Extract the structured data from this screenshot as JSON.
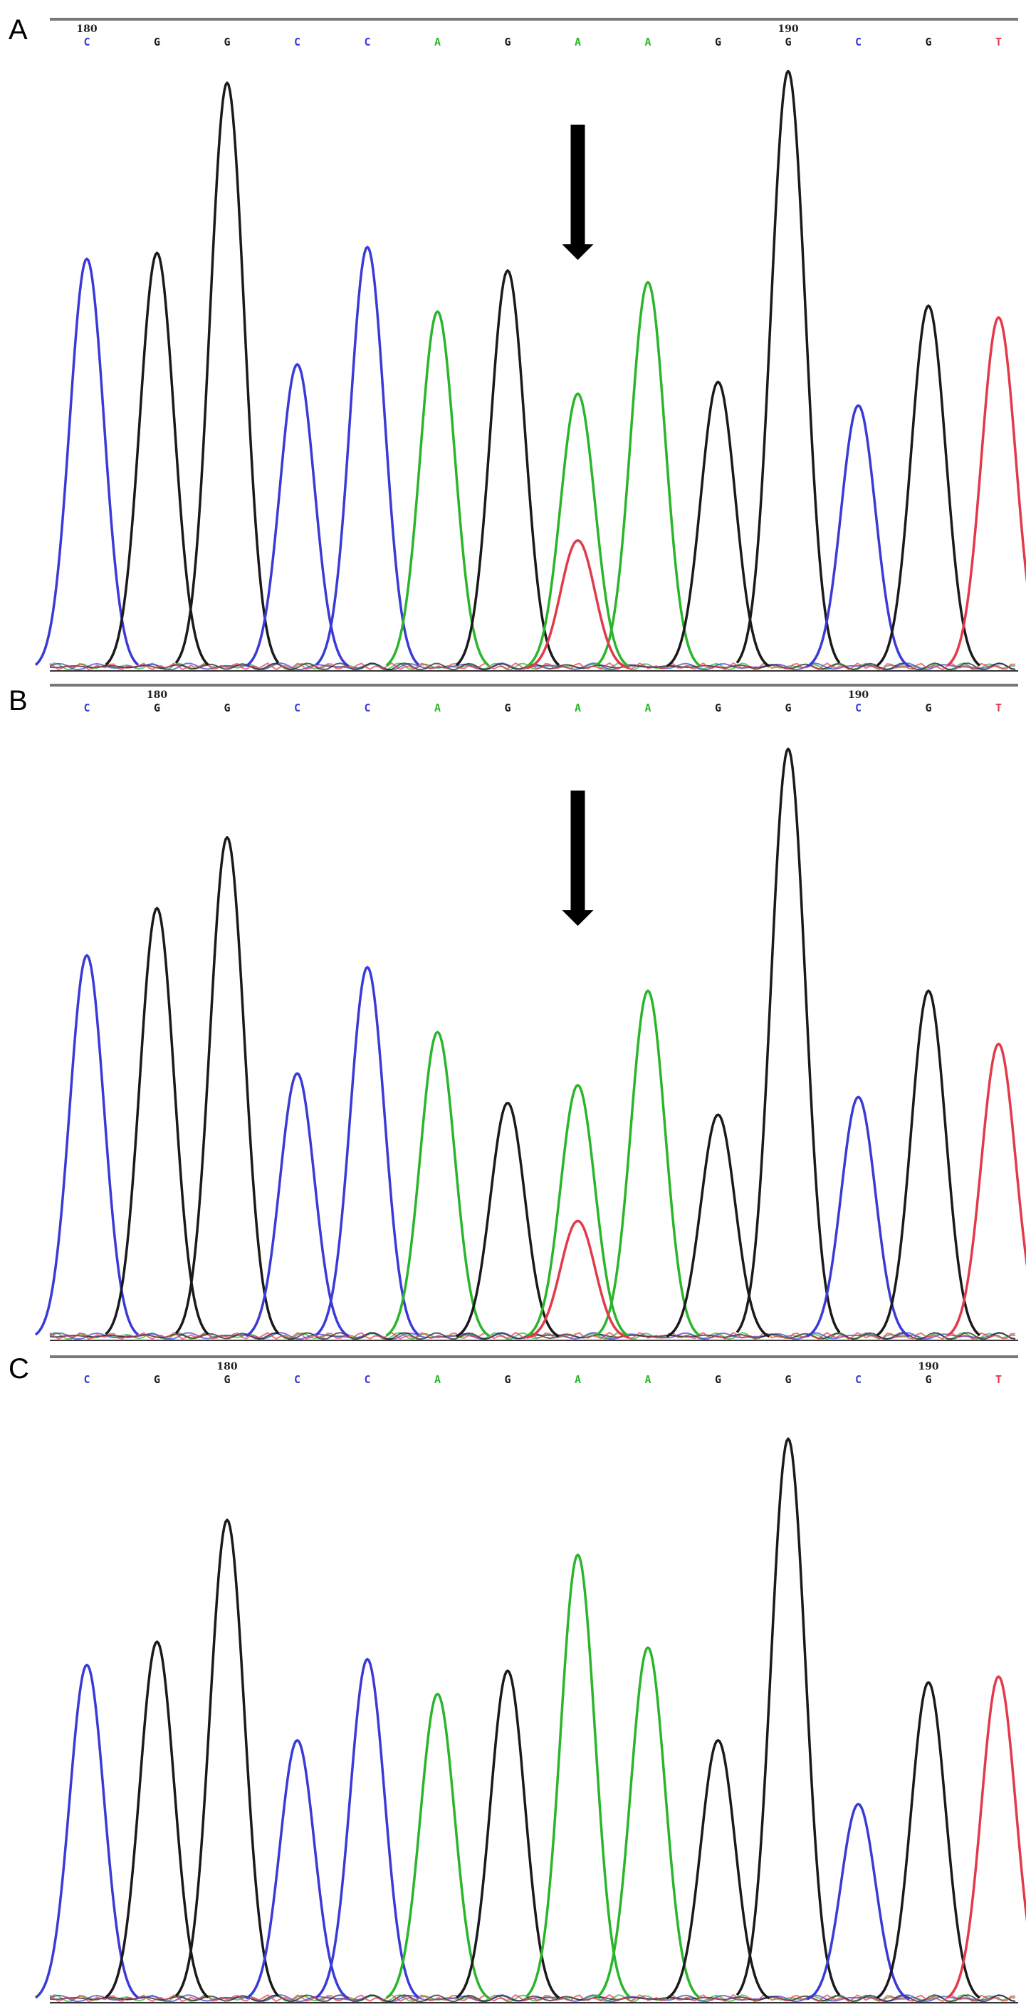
{
  "colors": {
    "A": "#2bb52b",
    "C": "#3a3ad6",
    "G": "#1a1a1a",
    "T": "#e23a4a",
    "axis": "#777777",
    "background": "#ffffff"
  },
  "chart_data": [
    {
      "type": "line",
      "panel": "A",
      "sequence": [
        "C",
        "G",
        "G",
        "C",
        "C",
        "A",
        "G",
        "A",
        "A",
        "G",
        "G",
        "C",
        "G",
        "T"
      ],
      "position_labels": [
        {
          "index": 0,
          "text": "180"
        },
        {
          "index": 10,
          "text": "190"
        }
      ],
      "peaks": [
        70,
        71,
        100,
        52,
        72,
        61,
        68,
        47,
        66,
        49,
        102,
        45,
        62,
        60
      ],
      "secondary_peaks": [
        {
          "index": 7,
          "base": "T",
          "value": 22
        }
      ],
      "arrow_index": 7,
      "ylim": [
        0,
        105
      ]
    },
    {
      "type": "line",
      "panel": "B",
      "sequence": [
        "C",
        "G",
        "G",
        "C",
        "C",
        "A",
        "G",
        "A",
        "A",
        "G",
        "G",
        "C",
        "G",
        "T"
      ],
      "position_labels": [
        {
          "index": 1,
          "text": "180"
        },
        {
          "index": 11,
          "text": "190"
        }
      ],
      "peaks": [
        65,
        73,
        85,
        45,
        63,
        52,
        40,
        43,
        59,
        38,
        100,
        41,
        59,
        50
      ],
      "secondary_peaks": [
        {
          "index": 7,
          "base": "T",
          "value": 20
        }
      ],
      "arrow_index": 7,
      "ylim": [
        0,
        105
      ]
    },
    {
      "type": "line",
      "panel": "C",
      "sequence": [
        "C",
        "G",
        "G",
        "C",
        "C",
        "A",
        "G",
        "A",
        "A",
        "G",
        "G",
        "C",
        "G",
        "T"
      ],
      "position_labels": [
        {
          "index": 2,
          "text": "180"
        },
        {
          "index": 12,
          "text": "190"
        }
      ],
      "peaks": [
        58,
        62,
        83,
        45,
        59,
        53,
        57,
        77,
        61,
        45,
        97,
        34,
        55,
        56
      ],
      "secondary_peaks": [],
      "arrow_index": null,
      "ylim": [
        0,
        105
      ]
    }
  ]
}
